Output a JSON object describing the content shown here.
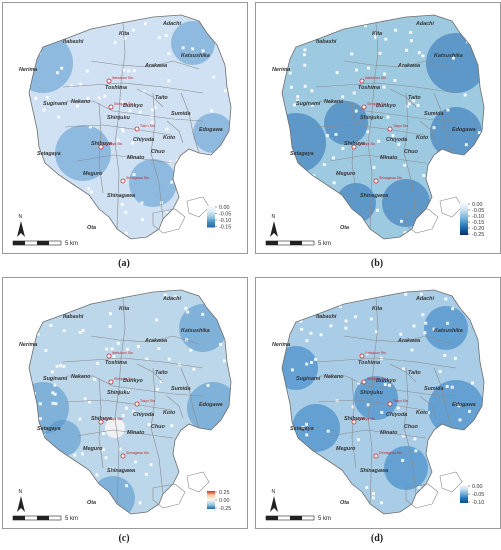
{
  "panels": [
    {
      "id": "a",
      "caption": "(a)",
      "legend_ticks": [
        "0.00",
        "-0.05",
        "-0.10",
        "-0.15"
      ],
      "legend_colors": [
        "#f7fbff",
        "#deebf7",
        "#9ecae1",
        "#4292c6",
        "#2166ac"
      ]
    },
    {
      "id": "b",
      "caption": "(b)",
      "legend_ticks": [
        "0.00",
        "-0.05",
        "-0.10",
        "-0.15",
        "-0.20",
        "-0.25"
      ],
      "legend_colors": [
        "#f7fbff",
        "#c6dbef",
        "#6baed6",
        "#2171b5",
        "#08306b"
      ]
    },
    {
      "id": "c",
      "caption": "(c)",
      "legend_ticks": [
        "0.25",
        "0.00",
        "-0.25"
      ],
      "legend_colors": [
        "#d7301f",
        "#fdd0a2",
        "#f7f7f7",
        "#9ecae1",
        "#2166ac"
      ]
    },
    {
      "id": "d",
      "caption": "(d)",
      "legend_ticks": [
        "0.00",
        "-0.05",
        "-0.10"
      ],
      "legend_colors": [
        "#f7fbff",
        "#c6dbef",
        "#6baed6",
        "#2171b5",
        "#08519c"
      ]
    }
  ],
  "wards": [
    "Itabashi",
    "Kita",
    "Adachi",
    "Nerima",
    "Arakawa",
    "Katsushika",
    "Toshima",
    "Bunkyo",
    "Taito",
    "Sumida",
    "Suginami",
    "Nakano",
    "Shinjuku",
    "Edogawa",
    "Chiyoda",
    "Chuo",
    "Koto",
    "Shibuya",
    "Minato",
    "Setagaya",
    "Meguro",
    "Shinagawa",
    "Ota"
  ],
  "stations": [
    "Ikebukuro Stn.",
    "Shinjuku Stn.",
    "Tokyo Stn.",
    "Shibuya Stn.",
    "Shinagawa Stn."
  ],
  "north_label": "N",
  "scale_label": "5 km"
}
